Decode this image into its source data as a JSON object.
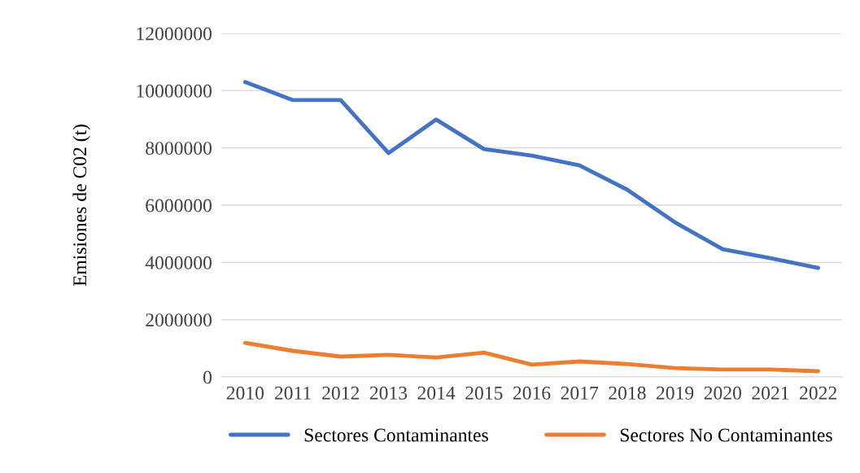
{
  "chart_data": {
    "type": "line",
    "ylabel": "Emisiones de C02 (t)",
    "categories": [
      "2010",
      "2011",
      "2012",
      "2013",
      "2014",
      "2015",
      "2016",
      "2017",
      "2018",
      "2019",
      "2020",
      "2021",
      "2022"
    ],
    "series": [
      {
        "name": "Sectores Contaminantes",
        "color": "#4472c4",
        "values": [
          10300000,
          9670000,
          9670000,
          7820000,
          8990000,
          7960000,
          7730000,
          7390000,
          6540000,
          5400000,
          4460000,
          4150000,
          3810000
        ]
      },
      {
        "name": "Sectores No Contaminantes",
        "color": "#ed7d31",
        "values": [
          1190000,
          910000,
          710000,
          770000,
          680000,
          850000,
          430000,
          540000,
          450000,
          310000,
          260000,
          260000,
          200000
        ]
      }
    ],
    "ylim": [
      0,
      12000000
    ],
    "yticks": [
      0,
      2000000,
      4000000,
      6000000,
      8000000,
      10000000,
      12000000
    ],
    "grid": "y",
    "legend": "bottom",
    "marker": "none",
    "line_style": "solid"
  }
}
